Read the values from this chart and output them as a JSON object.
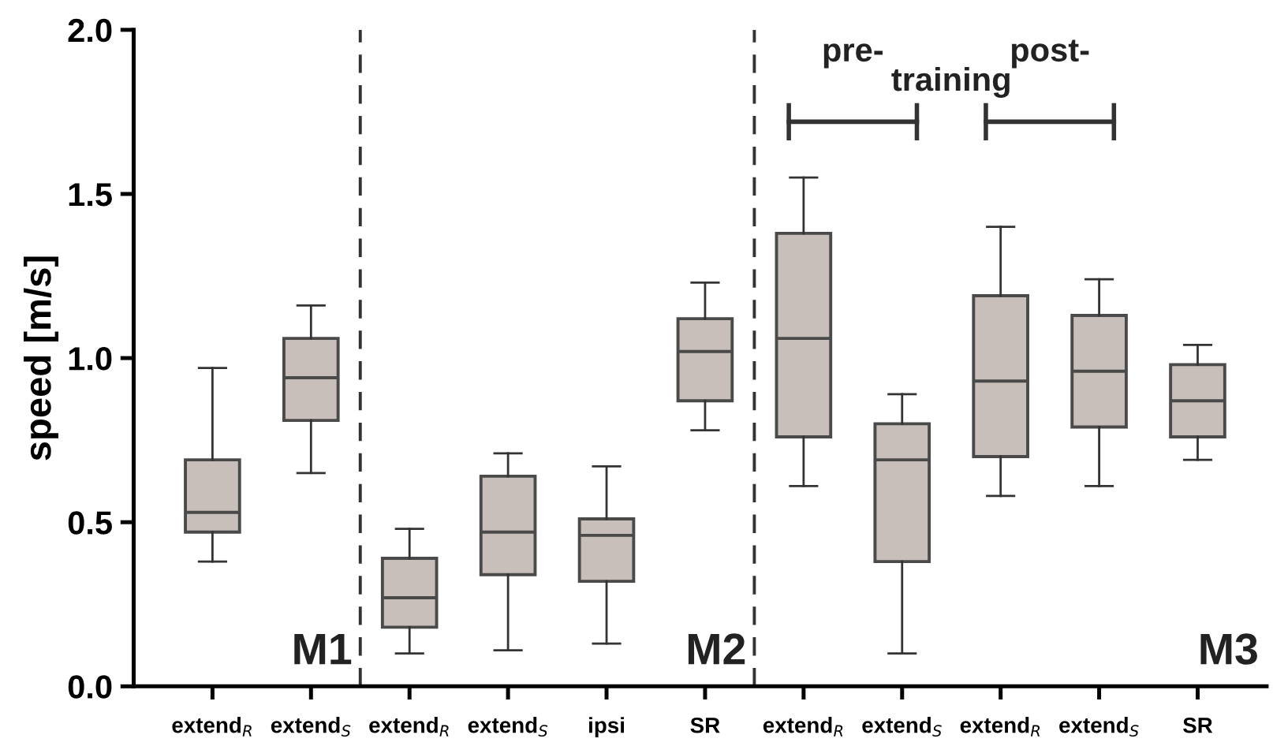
{
  "chart_data": {
    "type": "box",
    "ylabel": "speed [m/s]",
    "categories": [
      "extend$_{R}$",
      "extend$_{S}$",
      "extend$_{R}$",
      "extend$_{S}$",
      "ipsi",
      "SR",
      "extend$_{R}$",
      "extend$_{S}$",
      "extend$_{R}$",
      "extend$_{S}$",
      "SR"
    ],
    "color": "#c8bfba",
    "boxes": [
      {
        "low": 0.38,
        "q1": 0.47,
        "median": 0.53,
        "q3": 0.69,
        "high": 0.97
      },
      {
        "low": 0.65,
        "q1": 0.81,
        "median": 0.94,
        "q3": 1.06,
        "high": 1.16
      },
      {
        "low": 0.1,
        "q1": 0.18,
        "median": 0.27,
        "q3": 0.39,
        "high": 0.48
      },
      {
        "low": 0.11,
        "q1": 0.34,
        "median": 0.47,
        "q3": 0.64,
        "high": 0.71
      },
      {
        "low": 0.13,
        "q1": 0.32,
        "median": 0.46,
        "q3": 0.51,
        "high": 0.67
      },
      {
        "low": 0.78,
        "q1": 0.87,
        "median": 1.02,
        "q3": 1.12,
        "high": 1.23
      },
      {
        "low": 0.61,
        "q1": 0.76,
        "median": 1.06,
        "q3": 1.38,
        "high": 1.55
      },
      {
        "low": 0.1,
        "q1": 0.38,
        "median": 0.69,
        "q3": 0.8,
        "high": 0.89
      },
      {
        "low": 0.58,
        "q1": 0.7,
        "median": 0.93,
        "q3": 1.19,
        "high": 1.4
      },
      {
        "low": 0.61,
        "q1": 0.79,
        "median": 0.96,
        "q3": 1.13,
        "high": 1.24
      },
      {
        "low": 0.69,
        "q1": 0.76,
        "median": 0.87,
        "q3": 0.98,
        "high": 1.04
      }
    ],
    "ylim": [
      0,
      2.0
    ],
    "yticks": [
      {
        "value": 0,
        "label": "0.0"
      },
      {
        "value": 0.5,
        "label": "0.5"
      },
      {
        "value": 1.0,
        "label": "1.0"
      },
      {
        "value": 1.5,
        "label": "1.5"
      },
      {
        "value": 2.0,
        "label": "2.0"
      }
    ],
    "annotations": [
      "M1",
      "M2",
      "M3",
      "pre-",
      "post-",
      "training"
    ],
    "grid": false
  }
}
